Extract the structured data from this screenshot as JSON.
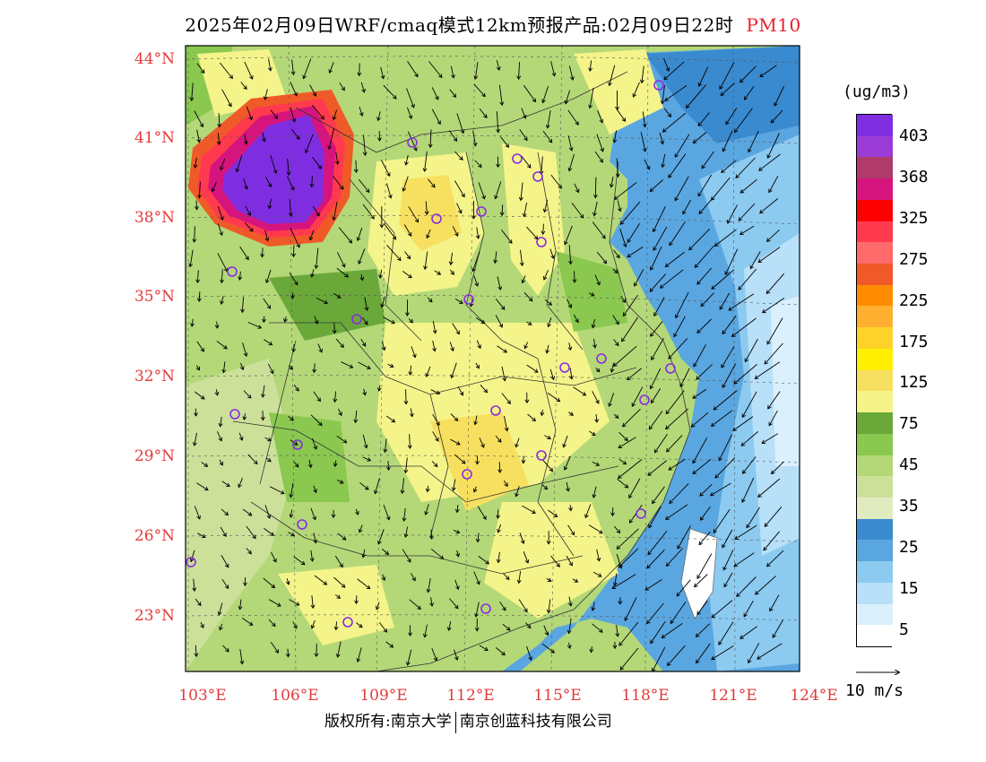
{
  "title": {
    "main": "2025年02月09日WRF/cmaq模式12km预报产品:02月09日22时",
    "variable": "PM10"
  },
  "map": {
    "lat_labels": [
      "44°N",
      "41°N",
      "38°N",
      "35°N",
      "32°N",
      "29°N",
      "26°N",
      "23°N"
    ],
    "lon_labels": [
      "103°E",
      "106°E",
      "109°E",
      "112°E",
      "115°E",
      "118°E",
      "121°E",
      "124°E"
    ]
  },
  "legend": {
    "unit": "(ug/m3)",
    "ticks": [
      "403",
      "368",
      "325",
      "275",
      "225",
      "175",
      "125",
      "75",
      "45",
      "35",
      "25",
      "15",
      "5"
    ],
    "colors": [
      "#7e2ee0",
      "#9b3bd6",
      "#b03a6a",
      "#d6147e",
      "#ff0000",
      "#ff3a4e",
      "#ff6a6a",
      "#f05a28",
      "#ff8c00",
      "#ffb030",
      "#ffd22a",
      "#fff000",
      "#f7e060",
      "#f4f48a",
      "#6aa83a",
      "#8ac850",
      "#b4d878",
      "#cce09a",
      "#e0ecc0",
      "#3a8ad0",
      "#5aa6e0",
      "#8ccaf0",
      "#b8e0f8",
      "#daf0fc",
      "#ffffff"
    ]
  },
  "wind_reference": "10 m/s",
  "copyright": {
    "left": "版权所有:南京大学",
    "right": "南京创蓝科技有限公司"
  }
}
